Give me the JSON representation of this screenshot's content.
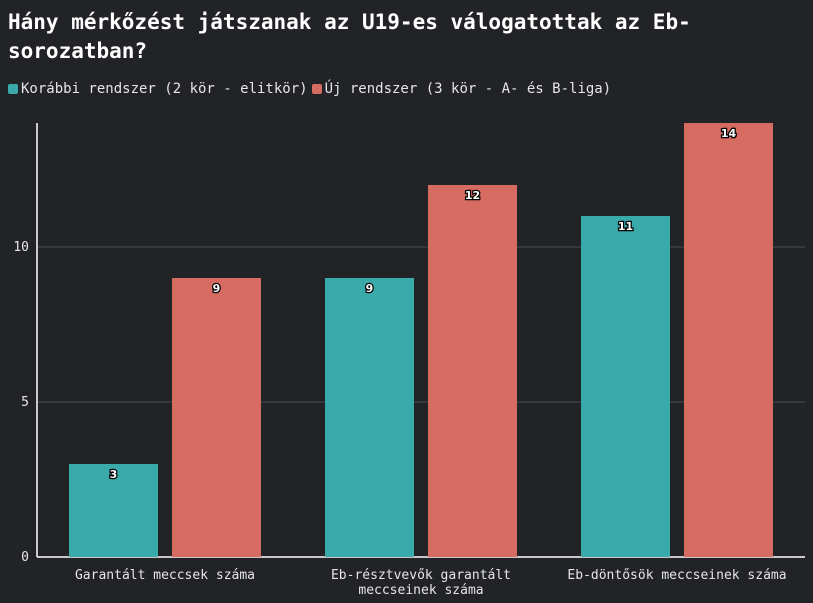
{
  "chart_data": {
    "type": "bar",
    "title": "Hány mérkőzést játszanak az U19-es válogatottak az Eb-sorozatban?",
    "categories": [
      [
        "Garantált meccsek száma"
      ],
      [
        "Eb-résztvevők garantált",
        "meccseinek száma"
      ],
      [
        "Eb-döntősök meccseinek száma"
      ]
    ],
    "series": [
      {
        "name": "Korábbi rendszer (2 kör - elitkör)",
        "color": "#3aa9a9",
        "values": [
          3,
          9,
          11
        ]
      },
      {
        "name": "Új rendszer (3 kör - A- és B-liga)",
        "color": "#d66b61",
        "values": [
          9,
          12,
          14
        ]
      }
    ],
    "yticks": [
      0,
      5,
      10
    ],
    "ylim": [
      0,
      14
    ],
    "xlabel": "",
    "ylabel": "",
    "grid": true,
    "legend": "top-left"
  }
}
